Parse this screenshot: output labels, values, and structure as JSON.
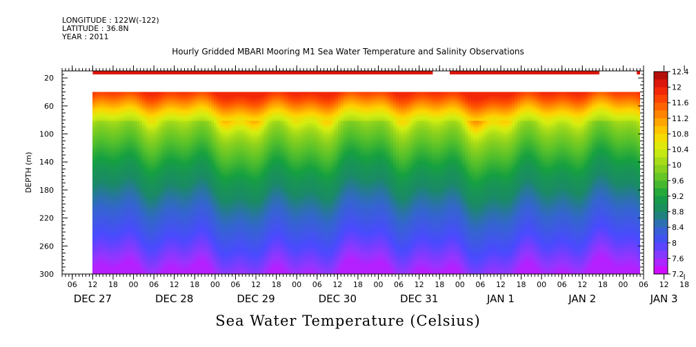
{
  "header": {
    "longitude": "LONGITUDE : 122W(-122)",
    "latitude": "LATITUDE : 36.8N",
    "year": "YEAR : 2011"
  },
  "title": "Hourly Gridded MBARI Mooring M1 Sea Water Temperature and Salinity Observations",
  "xlabel": "Sea Water Temperature (Celsius)",
  "chart_data": {
    "type": "heatmap",
    "title": "Hourly Gridded MBARI Mooring M1 Sea Water Temperature and Salinity Observations",
    "xlabel": "Sea Water Temperature (Celsius)",
    "ylabel": "DEPTH (m)",
    "x_range": [
      "2011-12-27 03:00",
      "2012-01-03 06:00"
    ],
    "data_start": "2011-12-27 12:00",
    "data_end": "2012-01-03 05:00",
    "ylim": [
      300,
      10
    ],
    "y_ticks": [
      20,
      60,
      100,
      140,
      180,
      220,
      260,
      300
    ],
    "x_hour_ticks": [
      "06",
      "12",
      "18",
      "00",
      "06",
      "12",
      "18",
      "00",
      "06",
      "12",
      "18",
      "00",
      "06",
      "12",
      "18",
      "00",
      "06",
      "12",
      "18",
      "00",
      "06",
      "12",
      "18",
      "00",
      "06",
      "12",
      "18",
      "00",
      "06",
      "12",
      "18",
      "00"
    ],
    "x_day_labels": [
      "DEC 27",
      "DEC 28",
      "DEC 29",
      "DEC 30",
      "DEC 31",
      "JAN  1",
      "JAN  2",
      "JAN  3"
    ],
    "colorbar": {
      "min": 7.2,
      "max": 12.4,
      "step": 0.2,
      "tick_labels": [
        "12.4",
        "12",
        "11.6",
        "11.2",
        "10.8",
        "10.4",
        "10",
        "9.6",
        "9.2",
        "8.8",
        "8.4",
        "8",
        "7.6",
        "7.2"
      ]
    },
    "surface_layer": {
      "depth_range": [
        10,
        15
      ],
      "value_approx": 12.1,
      "gaps": [
        [
          "2011-12-31 16:00",
          "2011-12-31 21:00"
        ],
        [
          "2012-01-02 17:00",
          "2012-01-03 04:00"
        ]
      ]
    },
    "profile_depth_range": [
      40,
      300
    ],
    "mean_profile": {
      "depth": [
        40,
        50,
        60,
        70,
        80,
        90,
        100,
        120,
        140,
        160,
        180,
        200,
        220,
        240,
        260,
        280,
        300
      ],
      "temperature": [
        11.9,
        11.6,
        11.2,
        10.8,
        10.4,
        10.1,
        9.9,
        9.6,
        9.3,
        9.0,
        8.8,
        8.55,
        8.35,
        8.15,
        7.95,
        7.7,
        7.45
      ]
    }
  }
}
